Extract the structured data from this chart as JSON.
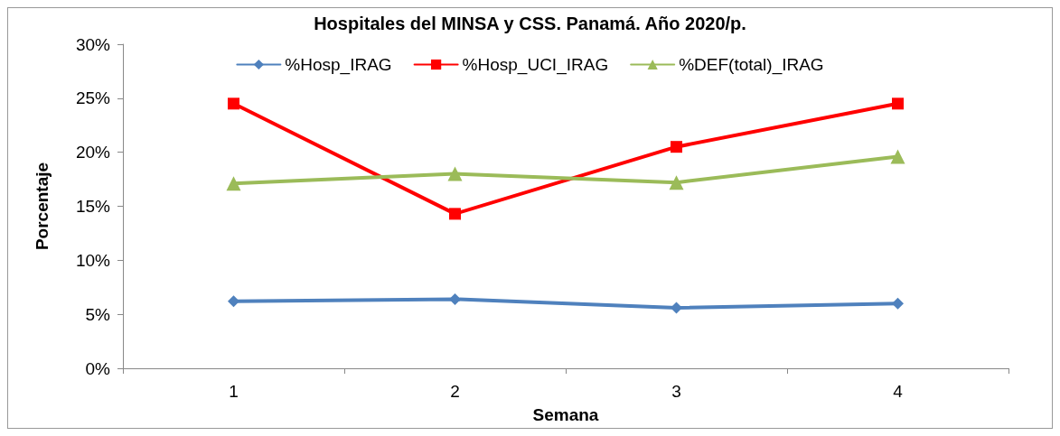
{
  "chart_data": {
    "type": "line",
    "title": "Hospitales del MINSA y CSS. Panamá. Año 2020/p.",
    "xlabel": "Semana",
    "ylabel": "Porcentaje",
    "categories": [
      "1",
      "2",
      "3",
      "4"
    ],
    "series": [
      {
        "name": "%Hosp_IRAG",
        "color": "#4f81bd",
        "marker": "diamond",
        "values": [
          6.2,
          6.4,
          5.6,
          6.0
        ]
      },
      {
        "name": "%Hosp_UCI_IRAG",
        "color": "#ff0000",
        "marker": "square",
        "values": [
          24.5,
          14.3,
          20.5,
          24.5
        ]
      },
      {
        "name": "%DEF(total)_IRAG",
        "color": "#9bbb59",
        "marker": "triangle",
        "values": [
          17.1,
          18.0,
          17.2,
          19.6
        ]
      }
    ],
    "ylim": [
      0,
      30
    ],
    "yticks": [
      {
        "value": 0,
        "label": "0%"
      },
      {
        "value": 5,
        "label": "5%"
      },
      {
        "value": 10,
        "label": "10%"
      },
      {
        "value": 15,
        "label": "15%"
      },
      {
        "value": 20,
        "label": "20%"
      },
      {
        "value": 25,
        "label": "25%"
      },
      {
        "value": 30,
        "label": "30%"
      }
    ],
    "grid": false,
    "legend": "top",
    "line_style": "solid"
  }
}
